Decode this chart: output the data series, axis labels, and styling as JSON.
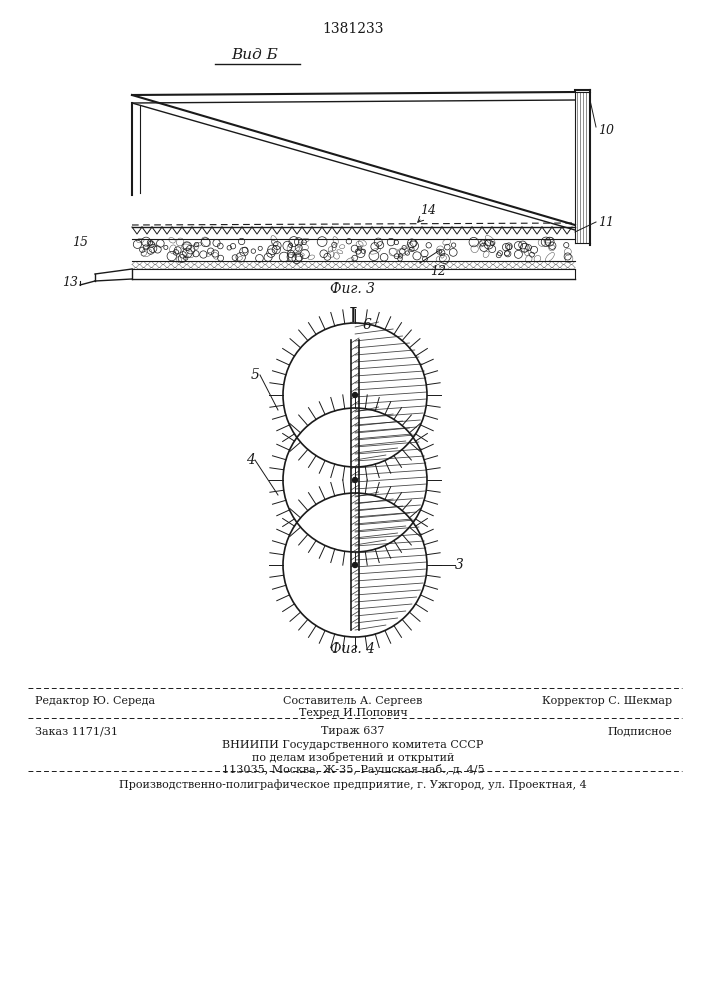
{
  "patent_number": "1381233",
  "view_label": "Вид Б",
  "fig3_label": "Фиг. 3",
  "fig4_label": "Фиг. 4",
  "roman_I": "I",
  "footer_line1_left": "Редактор Ю. Середа",
  "footer_composit": "Составитель А. Сергеев",
  "footer_techred": "Техред И.Попович",
  "footer_line1_right": "Корректор С. Шекмар",
  "footer_line2_left": "Заказ 1171/31",
  "footer_line2_mid": "Тираж 637",
  "footer_line2_right": "Подписное",
  "footer_line3": "ВНИИПИ Государственного комитета СССР",
  "footer_line4": "по делам изобретений и открытий",
  "footer_line5": "113035, Москва, Ж-35, Раушская наб., д. 4/5",
  "footer_line6": "Производственно-полиграфическое предприятие, г. Ужгород, ул. Проектная, 4",
  "bg_color": "#ffffff",
  "line_color": "#1a1a1a"
}
